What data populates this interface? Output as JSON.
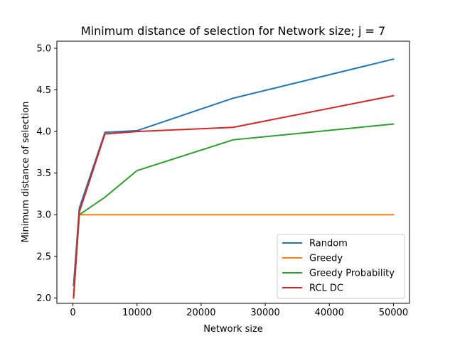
{
  "chart_data": {
    "type": "line",
    "title": "Minimum distance of selection for Network size; j = 7",
    "xlabel": "Network size",
    "ylabel": "Minimum distance of selection",
    "xlim": [
      -2500,
      52500
    ],
    "ylim": [
      1.935,
      5.085
    ],
    "x_ticks": [
      0,
      10000,
      20000,
      30000,
      40000,
      50000
    ],
    "x_tick_labels": [
      "0",
      "10000",
      "20000",
      "30000",
      "40000",
      "50000"
    ],
    "y_ticks": [
      2.0,
      2.5,
      3.0,
      3.5,
      4.0,
      4.5,
      5.0
    ],
    "y_tick_labels": [
      "2.0",
      "2.5",
      "3.0",
      "3.5",
      "4.0",
      "4.5",
      "5.0"
    ],
    "grid": false,
    "legend_position": "lower-right",
    "x": [
      100,
      1000,
      5000,
      10000,
      25000,
      50000
    ],
    "series": [
      {
        "name": "Random",
        "color": "#1f77b4",
        "values": [
          2.15,
          3.08,
          3.99,
          4.01,
          4.4,
          4.87
        ]
      },
      {
        "name": "Greedy",
        "color": "#ff7f0e",
        "values": [
          2.0,
          3.0,
          3.0,
          3.0,
          3.0,
          3.0
        ]
      },
      {
        "name": "Greedy Probability",
        "color": "#2ca02c",
        "values": [
          2.0,
          3.0,
          3.21,
          3.53,
          3.9,
          4.09
        ]
      },
      {
        "name": "RCL DC",
        "color": "#d62728",
        "values": [
          2.0,
          3.03,
          3.97,
          4.0,
          4.05,
          4.43
        ]
      }
    ]
  }
}
